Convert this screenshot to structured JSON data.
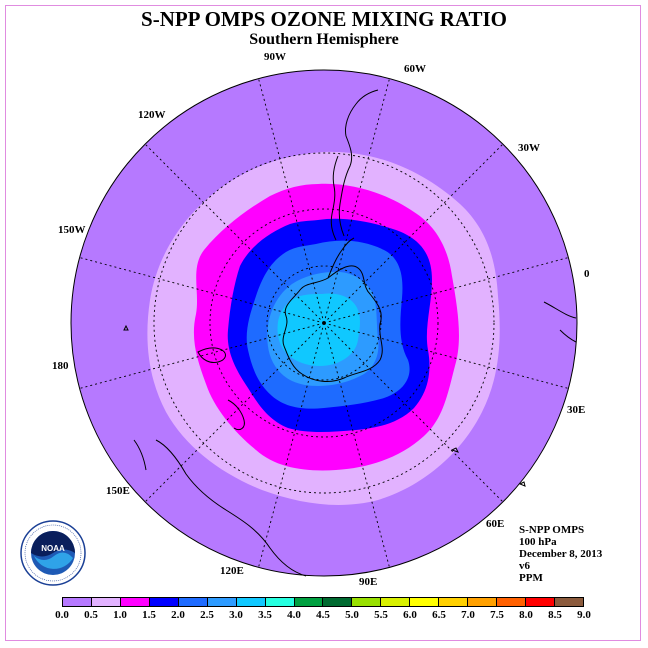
{
  "title": "S-NPP OMPS OZONE MIXING RATIO",
  "subtitle": "Southern Hemisphere",
  "longitude_labels": [
    "90W",
    "60W",
    "30W",
    "0",
    "30E",
    "60E",
    "90E",
    "120E",
    "150E",
    "180",
    "150W",
    "120W"
  ],
  "info": {
    "instrument": "S-NPP OMPS",
    "level": "100 hPa",
    "date": "December 8, 2013",
    "version": "v6",
    "units": "PPM"
  },
  "logo": {
    "name": "NOAA",
    "ring_text": "NATIONAL OCEANIC AND ATMOSPHERIC ADMINISTRATION · U.S. DEPARTMENT OF COMMERCE"
  },
  "colorbar": {
    "ticks": [
      "0.0",
      "0.5",
      "1.0",
      "1.5",
      "2.0",
      "2.5",
      "3.0",
      "3.5",
      "4.0",
      "4.5",
      "5.0",
      "5.5",
      "6.0",
      "6.5",
      "7.0",
      "7.5",
      "8.0",
      "8.5",
      "9.0"
    ],
    "colors": [
      "#b679ff",
      "#e2b2ff",
      "#ff00ff",
      "#0000ff",
      "#1e6bff",
      "#2d9bff",
      "#10c8ff",
      "#25ffe0",
      "#00a040",
      "#006a30",
      "#98e000",
      "#d8f000",
      "#ffff00",
      "#ffd000",
      "#ffa000",
      "#ff6000",
      "#ff0000",
      "#8b5a3c"
    ]
  },
  "map_levels": [
    {
      "level": "0.0-0.5",
      "color": "#b679ff"
    },
    {
      "level": "0.5-1.0",
      "color": "#e2b2ff"
    },
    {
      "level": "1.0-1.5",
      "color": "#ff00ff"
    },
    {
      "level": "1.5-2.0",
      "color": "#0000ff"
    },
    {
      "level": "2.0-2.5",
      "color": "#1e6bff"
    },
    {
      "level": "2.5-3.0",
      "color": "#2d9bff"
    },
    {
      "level": "3.0-3.5",
      "color": "#10c8ff"
    }
  ]
}
